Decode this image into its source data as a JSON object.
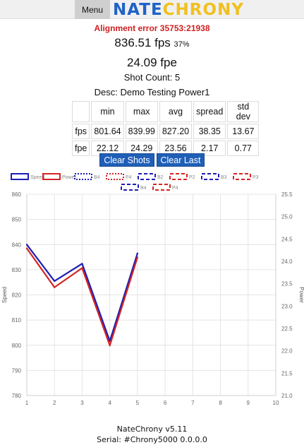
{
  "header": {
    "menu_label": "Menu",
    "logo_part1": "NATE",
    "logo_part2": "CHRONY"
  },
  "alignment_error": "Alignment error 35753:21938",
  "fps": {
    "value": "836.51 fps",
    "percent": "37%"
  },
  "fpe": {
    "value": "24.09 fpe"
  },
  "shot_count": "Shot Count: 5",
  "desc": "Desc: Demo Testing Power1",
  "stats_table": {
    "headers": [
      "",
      "min",
      "max",
      "avg",
      "spread",
      "std dev"
    ],
    "rows": [
      [
        "fps",
        "801.64",
        "839.99",
        "827.20",
        "38.35",
        "13.67"
      ],
      [
        "fpe",
        "22.12",
        "24.29",
        "23.56",
        "2.17",
        "0.77"
      ]
    ]
  },
  "buttons": {
    "clear_shots": "Clear Shots",
    "clear_last": "Clear Last"
  },
  "chart_data": {
    "type": "line",
    "x": [
      1,
      2,
      3,
      4,
      5
    ],
    "xlim": [
      1,
      10
    ],
    "xticks": [
      "1",
      "2",
      "3",
      "4",
      "5",
      "6",
      "7",
      "8",
      "9",
      "10"
    ],
    "ylabel": "Speed",
    "ylim": [
      780,
      860
    ],
    "yticks": [
      "860",
      "850",
      "840",
      "830",
      "820",
      "810",
      "800",
      "790",
      "780"
    ],
    "y2label": "Power",
    "y2lim": [
      21.0,
      25.5
    ],
    "y2ticks": [
      "25.5",
      "25.0",
      "24.5",
      "24.0",
      "23.5",
      "23.0",
      "22.5",
      "22.0",
      "21.5",
      "21.0"
    ],
    "grid": true,
    "legend_position": "top",
    "series": [
      {
        "name": "Speed",
        "axis": "left",
        "color": "#1e1eb4",
        "values": [
          839.99,
          825.5,
          832.4,
          801.64,
          836.51
        ]
      },
      {
        "name": "Power",
        "axis": "right",
        "color": "#d42424",
        "values": [
          24.29,
          23.42,
          23.85,
          22.12,
          24.09
        ]
      }
    ],
    "legend": [
      {
        "label": "Speed",
        "color": "#1e1eb4",
        "style": "solid"
      },
      {
        "label": "Power",
        "color": "#d42424",
        "style": "solid"
      },
      {
        "label": "B4",
        "color": "#1e1eb4",
        "style": "dotted"
      },
      {
        "label": "P4",
        "color": "#d42424",
        "style": "dotted"
      },
      {
        "label": "B2",
        "color": "#1e1eb4",
        "style": "dashed"
      },
      {
        "label": "P2",
        "color": "#d42424",
        "style": "dashed"
      },
      {
        "label": "B3",
        "color": "#1e1eb4",
        "style": "dashed"
      },
      {
        "label": "P3",
        "color": "#d42424",
        "style": "dashed"
      },
      {
        "label": "B4",
        "color": "#1e1eb4",
        "style": "dashed"
      },
      {
        "label": "P4",
        "color": "#d42424",
        "style": "dashed"
      }
    ]
  },
  "footer": {
    "version": "NateChrony v5.11",
    "serial": "Serial: #Chrony5000 0.0.0.0"
  }
}
